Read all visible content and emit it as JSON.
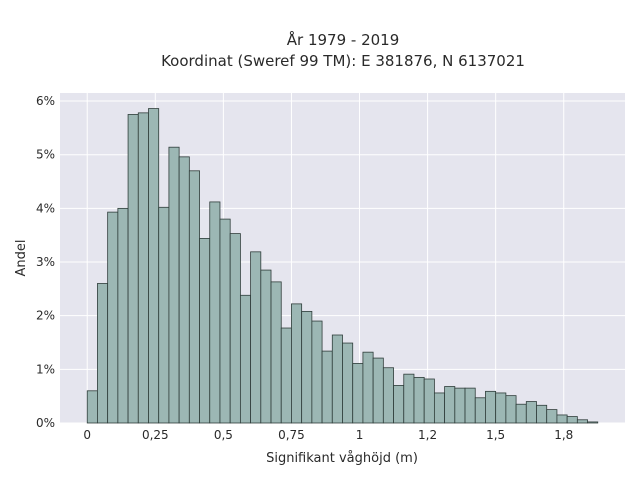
{
  "chart_data": {
    "type": "bar",
    "title_line1": "År 1979 - 2019",
    "title_line2": "Koordinat (Sweref 99 TM): E 381876, N 6137021",
    "xlabel": "Signifikant våghöjd (m)",
    "ylabel": "Andel",
    "x_ticks": [
      {
        "value": 0,
        "label": "0"
      },
      {
        "value": 0.25,
        "label": "0,25"
      },
      {
        "value": 0.5,
        "label": "0,5"
      },
      {
        "value": 0.75,
        "label": "0,75"
      },
      {
        "value": 1.0,
        "label": "1"
      },
      {
        "value": 1.25,
        "label": "1,2"
      },
      {
        "value": 1.5,
        "label": "1,5"
      },
      {
        "value": 1.75,
        "label": "1,8"
      }
    ],
    "y_ticks": [
      {
        "value": 0,
        "label": "0%"
      },
      {
        "value": 1,
        "label": "1%"
      },
      {
        "value": 2,
        "label": "2%"
      },
      {
        "value": 3,
        "label": "3%"
      },
      {
        "value": 4,
        "label": "4%"
      },
      {
        "value": 5,
        "label": "5%"
      },
      {
        "value": 6,
        "label": "6%"
      }
    ],
    "xlim": [
      -0.1,
      1.975
    ],
    "ylim": [
      0,
      6.15
    ],
    "bin_start": 0,
    "bin_width": 0.0375,
    "values": [
      0.6,
      2.6,
      3.93,
      4.0,
      5.75,
      5.78,
      5.86,
      4.02,
      5.14,
      4.96,
      4.7,
      3.44,
      4.12,
      3.8,
      3.53,
      2.38,
      3.19,
      2.85,
      2.63,
      1.77,
      2.22,
      2.08,
      1.9,
      1.34,
      1.64,
      1.49,
      1.11,
      1.32,
      1.21,
      1.03,
      0.7,
      0.91,
      0.85,
      0.82,
      0.56,
      0.68,
      0.65,
      0.65,
      0.47,
      0.59,
      0.56,
      0.51,
      0.35,
      0.4,
      0.33,
      0.25,
      0.15,
      0.12,
      0.06,
      0.02
    ],
    "grid": true,
    "colors": {
      "plot_background": "#e5e5ee",
      "grid": "#ffffff",
      "bar_fill": "#9cb7b4",
      "bar_stroke": "#2f3d3a"
    }
  }
}
